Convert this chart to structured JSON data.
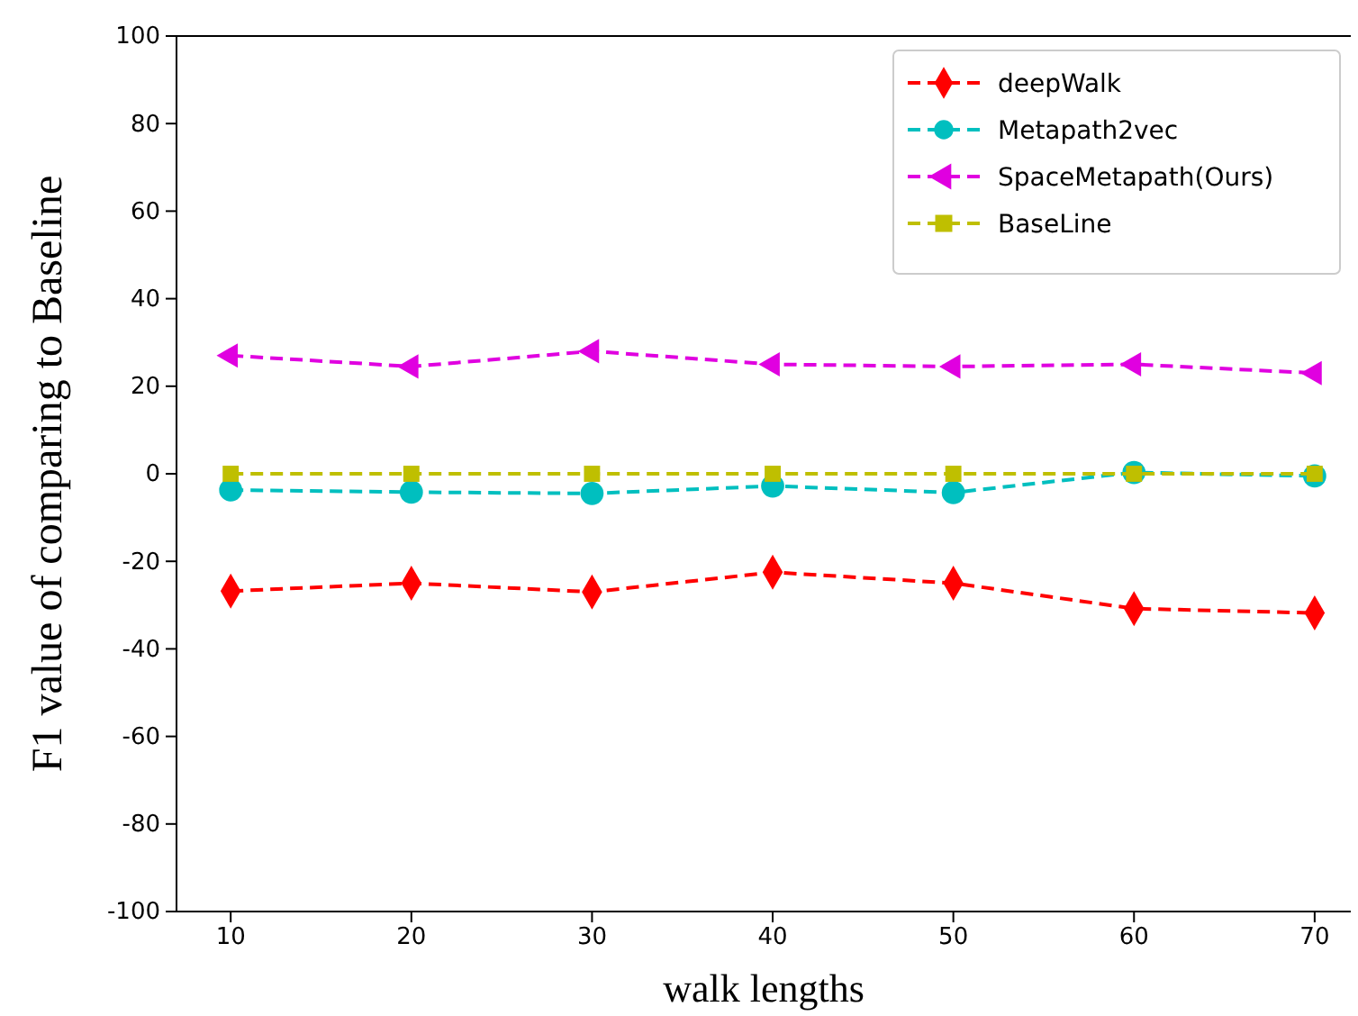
{
  "chart_data": {
    "type": "line",
    "xlabel": "walk lengths",
    "ylabel": "F1 value of comparing to Baseline",
    "x": [
      10,
      20,
      30,
      40,
      50,
      60,
      70
    ],
    "xlim": [
      7,
      72
    ],
    "xticks": [
      10,
      20,
      30,
      40,
      50,
      60,
      70
    ],
    "ylim": [
      -100,
      100
    ],
    "yticks": [
      -100,
      -80,
      -60,
      -40,
      -20,
      0,
      20,
      40,
      60,
      80,
      100
    ],
    "grid": false,
    "legend": "top right",
    "line_style": "dashed",
    "series": [
      {
        "name": "deepWalk",
        "color": "#ff0000",
        "marker": "diamond",
        "values": [
          -26.8,
          -25,
          -27,
          -22.5,
          -25,
          -30.8,
          -31.8
        ]
      },
      {
        "name": "Metapath2vec",
        "color": "#00bfbf",
        "marker": "circle",
        "values": [
          -3.7,
          -4.2,
          -4.5,
          -2.8,
          -4.3,
          0.3,
          -0.5
        ]
      },
      {
        "name": "SpaceMetapath(Ours)",
        "color": "#e000e0",
        "marker": "triangle",
        "values": [
          27,
          24.5,
          28,
          25,
          24.5,
          25,
          23
        ]
      },
      {
        "name": "BaseLine",
        "color": "#bfbf00",
        "marker": "square",
        "values": [
          0,
          0,
          0,
          0,
          0,
          0,
          0
        ]
      }
    ]
  }
}
